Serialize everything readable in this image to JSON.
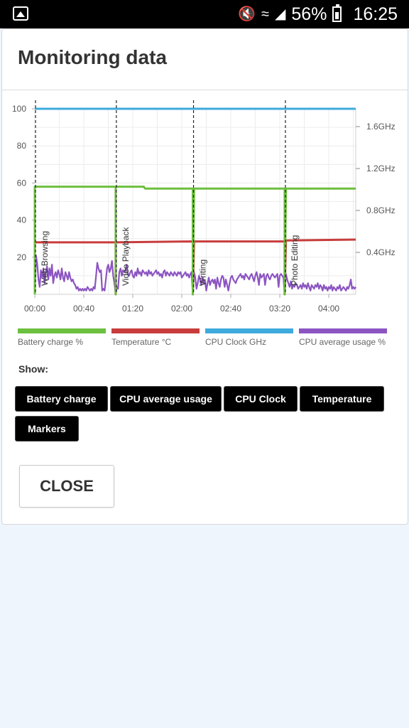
{
  "status_bar": {
    "battery_percent": "56%",
    "time": "16:25",
    "icons": [
      "gallery-icon",
      "mute-icon",
      "wifi-icon",
      "signal-icon",
      "battery-icon"
    ]
  },
  "dialog": {
    "title": "Monitoring data",
    "show_label": "Show:",
    "toggles": [
      "Battery charge",
      "CPU average usage",
      "CPU Clock",
      "Temperature",
      "Markers"
    ],
    "close_label": "CLOSE"
  },
  "colors": {
    "battery": "#6dbf3f",
    "temperature": "#c83c3c",
    "cpu_clock": "#3eaadd",
    "cpu_usage": "#8c55c2"
  },
  "chart_data": {
    "type": "line",
    "x_ticks": [
      "00:00",
      "00:40",
      "01:20",
      "02:00",
      "02:40",
      "03:20",
      "04:00"
    ],
    "x_minutes_at_ticks": [
      0,
      40,
      80,
      120,
      160,
      200,
      240
    ],
    "x_range_minutes": [
      0,
      262
    ],
    "y_left_ticks": [
      "100",
      "80",
      "60",
      "40",
      "20"
    ],
    "y_left_range": [
      0,
      100
    ],
    "y_right_ticks": [
      "1.6GHz",
      "1.2GHz",
      "0.8GHz",
      "0.4GHz"
    ],
    "y_right_range_ghz": [
      0,
      1.77
    ],
    "markers": [
      {
        "label": "Web Browsing",
        "x": 0
      },
      {
        "label": "Video Playback",
        "x": 66
      },
      {
        "label": "Writing",
        "x": 129
      },
      {
        "label": "Photo Editing",
        "x": 204
      }
    ],
    "series": [
      {
        "name": "Battery charge %",
        "color": "#6dbf3f",
        "axis": "left",
        "points": [
          [
            0,
            0
          ],
          [
            0,
            58
          ],
          [
            66,
            58
          ],
          [
            66,
            0
          ],
          [
            66,
            58
          ],
          [
            89,
            58
          ],
          [
            90,
            57
          ],
          [
            129,
            57
          ],
          [
            129,
            0
          ],
          [
            130,
            57
          ],
          [
            204,
            57
          ],
          [
            204,
            0
          ],
          [
            205,
            57
          ],
          [
            262,
            57
          ]
        ]
      },
      {
        "name": "Temperature °C",
        "color": "#c83c3c",
        "axis": "left",
        "points": [
          [
            0,
            0
          ],
          [
            0,
            28
          ],
          [
            66,
            28
          ],
          [
            66,
            0
          ],
          [
            66,
            28
          ],
          [
            129,
            28.5
          ],
          [
            129,
            0
          ],
          [
            130,
            28.5
          ],
          [
            204,
            28.5
          ],
          [
            204,
            0
          ],
          [
            205,
            29
          ],
          [
            262,
            29.5
          ]
        ]
      },
      {
        "name": "CPU Clock GHz",
        "color": "#3eaadd",
        "axis": "left",
        "points": [
          [
            0,
            100
          ],
          [
            262,
            100
          ]
        ]
      },
      {
        "name": "CPU average usage %",
        "color": "#8c55c2",
        "axis": "left",
        "points": [
          [
            0,
            0
          ],
          [
            1,
            21
          ],
          [
            2,
            16
          ],
          [
            3,
            8
          ],
          [
            4,
            4
          ],
          [
            5,
            13
          ],
          [
            6,
            9
          ],
          [
            7,
            14
          ],
          [
            8,
            6
          ],
          [
            9,
            12
          ],
          [
            10,
            15
          ],
          [
            11,
            8
          ],
          [
            12,
            14
          ],
          [
            13,
            10
          ],
          [
            14,
            16
          ],
          [
            15,
            6
          ],
          [
            16,
            10
          ],
          [
            17,
            12
          ],
          [
            18,
            9
          ],
          [
            19,
            13
          ],
          [
            20,
            11
          ],
          [
            21,
            8
          ],
          [
            22,
            14
          ],
          [
            23,
            9
          ],
          [
            24,
            7
          ],
          [
            25,
            12
          ],
          [
            26,
            10
          ],
          [
            27,
            8
          ],
          [
            28,
            12
          ],
          [
            29,
            9
          ],
          [
            30,
            7
          ],
          [
            31,
            8
          ],
          [
            32,
            6
          ],
          [
            33,
            5
          ],
          [
            34,
            3
          ],
          [
            35,
            4
          ],
          [
            36,
            2
          ],
          [
            37,
            3
          ],
          [
            38,
            2
          ],
          [
            39,
            3
          ],
          [
            40,
            2
          ],
          [
            41,
            3
          ],
          [
            42,
            2
          ],
          [
            43,
            4
          ],
          [
            44,
            3
          ],
          [
            45,
            2
          ],
          [
            46,
            3
          ],
          [
            47,
            2
          ],
          [
            48,
            4
          ],
          [
            49,
            3
          ],
          [
            50,
            10
          ],
          [
            51,
            17
          ],
          [
            52,
            14
          ],
          [
            53,
            12
          ],
          [
            54,
            13
          ],
          [
            55,
            2
          ],
          [
            56,
            3
          ],
          [
            57,
            2
          ],
          [
            58,
            8
          ],
          [
            59,
            14
          ],
          [
            60,
            16
          ],
          [
            61,
            12
          ],
          [
            62,
            14
          ],
          [
            63,
            18
          ],
          [
            64,
            10
          ],
          [
            65,
            6
          ],
          [
            66,
            0
          ],
          [
            67,
            4
          ],
          [
            68,
            3
          ],
          [
            69,
            12
          ],
          [
            70,
            14
          ],
          [
            71,
            10
          ],
          [
            72,
            13
          ],
          [
            73,
            12
          ],
          [
            74,
            13
          ],
          [
            75,
            16
          ],
          [
            76,
            11
          ],
          [
            77,
            10
          ],
          [
            78,
            12
          ],
          [
            79,
            13
          ],
          [
            80,
            10
          ],
          [
            81,
            9
          ],
          [
            82,
            12
          ],
          [
            83,
            10
          ],
          [
            84,
            14
          ],
          [
            85,
            11
          ],
          [
            86,
            12
          ],
          [
            87,
            10
          ],
          [
            88,
            13
          ],
          [
            89,
            12
          ],
          [
            90,
            11
          ],
          [
            91,
            12
          ],
          [
            92,
            10
          ],
          [
            93,
            13
          ],
          [
            94,
            11
          ],
          [
            95,
            12
          ],
          [
            96,
            10
          ],
          [
            97,
            11
          ],
          [
            98,
            12
          ],
          [
            99,
            13
          ],
          [
            100,
            11
          ],
          [
            101,
            12
          ],
          [
            102,
            10
          ],
          [
            103,
            11
          ],
          [
            104,
            9
          ],
          [
            105,
            12
          ],
          [
            106,
            13
          ],
          [
            107,
            10
          ],
          [
            108,
            12
          ],
          [
            109,
            11
          ],
          [
            110,
            10
          ],
          [
            111,
            12
          ],
          [
            112,
            11
          ],
          [
            113,
            10
          ],
          [
            114,
            12
          ],
          [
            115,
            11
          ],
          [
            116,
            10
          ],
          [
            117,
            12
          ],
          [
            118,
            11
          ],
          [
            119,
            12
          ],
          [
            120,
            9
          ],
          [
            121,
            10
          ],
          [
            122,
            11
          ],
          [
            123,
            12
          ],
          [
            124,
            10
          ],
          [
            125,
            11
          ],
          [
            126,
            9
          ],
          [
            127,
            11
          ],
          [
            128,
            12
          ],
          [
            129,
            0
          ],
          [
            130,
            12
          ],
          [
            131,
            9
          ],
          [
            132,
            3
          ],
          [
            133,
            6
          ],
          [
            134,
            10
          ],
          [
            135,
            8
          ],
          [
            136,
            5
          ],
          [
            137,
            9
          ],
          [
            138,
            6
          ],
          [
            139,
            7
          ],
          [
            140,
            2
          ],
          [
            141,
            6
          ],
          [
            142,
            9
          ],
          [
            143,
            5
          ],
          [
            144,
            7
          ],
          [
            145,
            8
          ],
          [
            146,
            6
          ],
          [
            147,
            8
          ],
          [
            148,
            3
          ],
          [
            149,
            9
          ],
          [
            150,
            6
          ],
          [
            151,
            4
          ],
          [
            152,
            8
          ],
          [
            153,
            10
          ],
          [
            154,
            9
          ],
          [
            155,
            4
          ],
          [
            156,
            8
          ],
          [
            157,
            5
          ],
          [
            158,
            2
          ],
          [
            159,
            6
          ],
          [
            160,
            9
          ],
          [
            161,
            10
          ],
          [
            162,
            8
          ],
          [
            163,
            7
          ],
          [
            164,
            6
          ],
          [
            165,
            8
          ],
          [
            166,
            9
          ],
          [
            167,
            10
          ],
          [
            168,
            11
          ],
          [
            169,
            9
          ],
          [
            170,
            10
          ],
          [
            171,
            8
          ],
          [
            172,
            11
          ],
          [
            173,
            10
          ],
          [
            174,
            9
          ],
          [
            175,
            8
          ],
          [
            176,
            10
          ],
          [
            177,
            11
          ],
          [
            178,
            9
          ],
          [
            179,
            7
          ],
          [
            180,
            10
          ],
          [
            181,
            12
          ],
          [
            182,
            9
          ],
          [
            183,
            5
          ],
          [
            184,
            11
          ],
          [
            185,
            9
          ],
          [
            186,
            10
          ],
          [
            187,
            11
          ],
          [
            188,
            5
          ],
          [
            189,
            10
          ],
          [
            190,
            11
          ],
          [
            191,
            9
          ],
          [
            192,
            8
          ],
          [
            193,
            10
          ],
          [
            194,
            11
          ],
          [
            195,
            10
          ],
          [
            196,
            9
          ],
          [
            197,
            10
          ],
          [
            198,
            11
          ],
          [
            199,
            4
          ],
          [
            200,
            10
          ],
          [
            201,
            11
          ],
          [
            202,
            10
          ],
          [
            203,
            9
          ],
          [
            204,
            0
          ],
          [
            205,
            11
          ],
          [
            206,
            8
          ],
          [
            207,
            6
          ],
          [
            208,
            4
          ],
          [
            209,
            7
          ],
          [
            210,
            3
          ],
          [
            211,
            5
          ],
          [
            212,
            4
          ],
          [
            213,
            6
          ],
          [
            214,
            5
          ],
          [
            215,
            3
          ],
          [
            216,
            4
          ],
          [
            217,
            5
          ],
          [
            218,
            3
          ],
          [
            219,
            6
          ],
          [
            220,
            4
          ],
          [
            221,
            5
          ],
          [
            222,
            3
          ],
          [
            223,
            6
          ],
          [
            224,
            4
          ],
          [
            225,
            2
          ],
          [
            226,
            5
          ],
          [
            227,
            4
          ],
          [
            228,
            3
          ],
          [
            229,
            5
          ],
          [
            230,
            4
          ],
          [
            231,
            6
          ],
          [
            232,
            3
          ],
          [
            233,
            5
          ],
          [
            234,
            4
          ],
          [
            235,
            2
          ],
          [
            236,
            5
          ],
          [
            237,
            3
          ],
          [
            238,
            4
          ],
          [
            239,
            2
          ],
          [
            240,
            4
          ],
          [
            241,
            3
          ],
          [
            242,
            5
          ],
          [
            243,
            2
          ],
          [
            244,
            4
          ],
          [
            245,
            3
          ],
          [
            246,
            2
          ],
          [
            247,
            4
          ],
          [
            248,
            3
          ],
          [
            249,
            5
          ],
          [
            250,
            2
          ],
          [
            251,
            3
          ],
          [
            252,
            4
          ],
          [
            253,
            3
          ],
          [
            254,
            2
          ],
          [
            255,
            4
          ],
          [
            256,
            3
          ],
          [
            257,
            5
          ],
          [
            258,
            8
          ],
          [
            259,
            3
          ],
          [
            260,
            4
          ],
          [
            261,
            3
          ],
          [
            262,
            4
          ]
        ]
      }
    ],
    "grid": true,
    "legend_position": "bottom"
  }
}
